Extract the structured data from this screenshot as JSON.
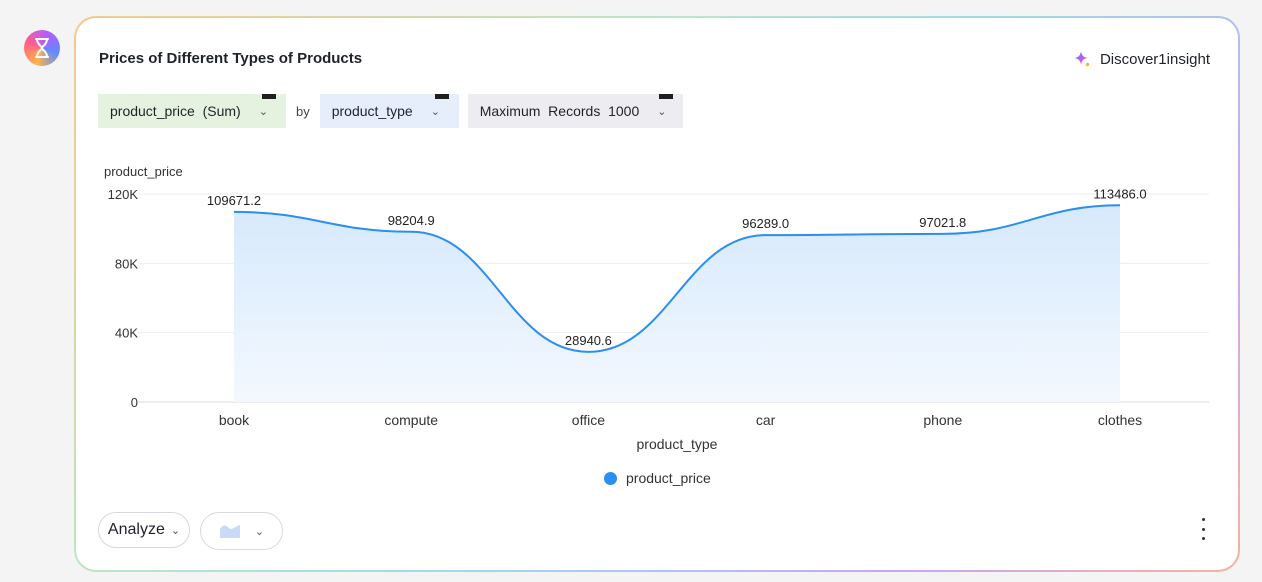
{
  "card": {
    "title": "Prices of Different Types of Products",
    "insight_label": "Discover1insight"
  },
  "controls": {
    "metric": "product_price  (Sum)",
    "by": "by",
    "dimension": "product_type",
    "max_records": "Maximum  Records  1000"
  },
  "footer": {
    "analyze_label": "Analyze"
  },
  "colors": {
    "line": "#2b8ef0",
    "area_top": "#d6e9fc",
    "area_bottom": "#f3f8fe"
  },
  "chart_data": {
    "type": "area",
    "categories": [
      "book",
      "compute",
      "office",
      "car",
      "phone",
      "clothes"
    ],
    "series": [
      {
        "name": "product_price",
        "values": [
          109671.2,
          98204.9,
          28940.6,
          96289.0,
          97021.8,
          113486.0
        ]
      }
    ],
    "data_labels": [
      "109671.2",
      "98204.9",
      "28940.6",
      "96289.0",
      "97021.8",
      "113486.0"
    ],
    "xlabel": "product_type",
    "ylabel": "product_price",
    "ylim": [
      0,
      120000
    ],
    "yticks": [
      0,
      40000,
      80000,
      120000
    ],
    "ytick_labels": [
      "0",
      "40K",
      "80K",
      "120K"
    ],
    "smooth": true,
    "grid": true,
    "legend": "bottom-center"
  }
}
